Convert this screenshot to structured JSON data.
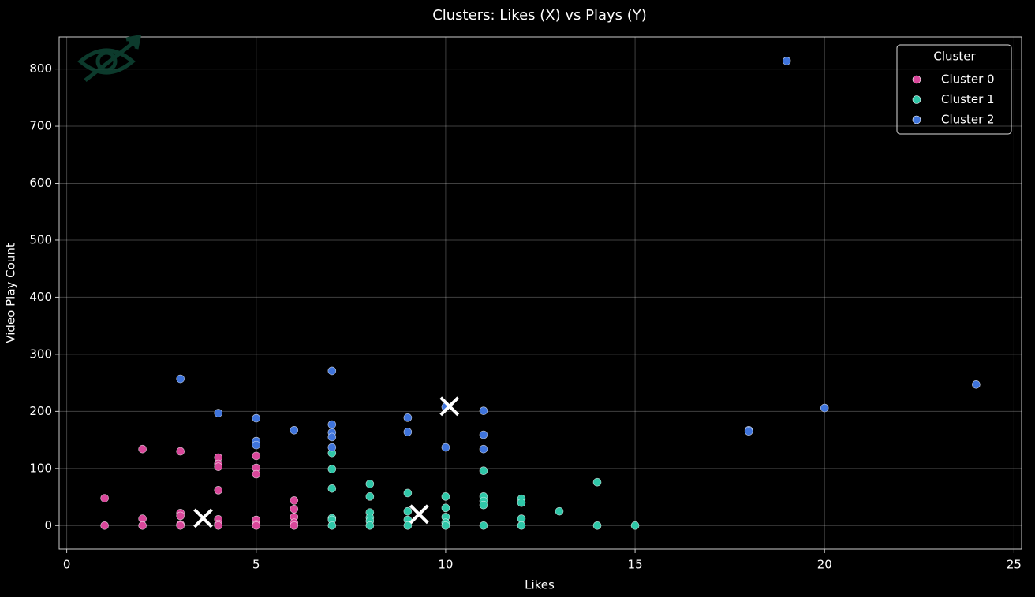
{
  "chart_data": {
    "type": "scatter",
    "title": "Clusters: Likes (X) vs Plays (Y)",
    "x_label": "Likes",
    "y_label": "Video Play Count",
    "xlim": [
      -0.2,
      25.2
    ],
    "ylim": [
      -41,
      856
    ],
    "xticks": [
      0,
      5,
      10,
      15,
      20,
      25
    ],
    "yticks": [
      0,
      100,
      200,
      300,
      400,
      500,
      600,
      700,
      800
    ],
    "grid": true,
    "legend_title": "Cluster",
    "legend_position": "upper-right",
    "series": [
      {
        "name": "Cluster 0",
        "color": "#d9479a",
        "x": [
          1,
          1,
          2,
          2,
          2,
          3,
          3,
          3,
          3,
          3,
          4,
          4,
          4,
          4,
          4,
          4,
          4,
          5,
          5,
          5,
          5,
          5,
          5,
          6,
          6,
          6,
          6,
          6
        ],
        "y": [
          48,
          0,
          134,
          12,
          0,
          130,
          22,
          17,
          2,
          0,
          119,
          108,
          103,
          62,
          11,
          3,
          0,
          122,
          101,
          90,
          10,
          2,
          0,
          44,
          29,
          15,
          5,
          0
        ]
      },
      {
        "name": "Cluster 1",
        "color": "#2fc7a8",
        "x": [
          7,
          7,
          7,
          7,
          7,
          7,
          8,
          8,
          8,
          8,
          8,
          8,
          9,
          9,
          9,
          9,
          10,
          10,
          10,
          10,
          10,
          11,
          11,
          11,
          11,
          11,
          12,
          12,
          12,
          12,
          13,
          14,
          14,
          15
        ],
        "y": [
          127,
          99,
          65,
          13,
          10,
          0,
          73,
          51,
          23,
          14,
          8,
          0,
          57,
          25,
          10,
          0,
          51,
          31,
          15,
          5,
          0,
          96,
          51,
          43,
          36,
          0,
          47,
          40,
          12,
          0,
          25,
          76,
          0,
          0
        ]
      },
      {
        "name": "Cluster 2",
        "color": "#3f74dc",
        "x": [
          3,
          4,
          5,
          5,
          5,
          6,
          7,
          7,
          7,
          7,
          7,
          9,
          9,
          10,
          10,
          11,
          11,
          11,
          18,
          18,
          19,
          20,
          24
        ],
        "y": [
          257,
          197,
          188,
          148,
          141,
          167,
          271,
          177,
          163,
          155,
          137,
          189,
          164,
          137,
          208,
          201,
          159,
          134,
          167,
          165,
          814,
          206,
          247
        ]
      }
    ],
    "centroids": {
      "color": "#ffffff",
      "x": [
        3.6,
        9.3,
        10.1
      ],
      "y": [
        13,
        20,
        209
      ]
    }
  }
}
